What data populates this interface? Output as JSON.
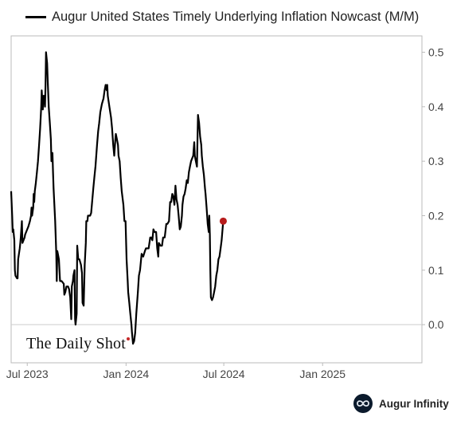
{
  "legend": {
    "label": "Augur United States Timely Underlying Inflation Nowcast (M/M)"
  },
  "watermark": {
    "text": "The Daily Shot"
  },
  "brand": {
    "text": "Augur Infinity",
    "icon": "infinity-icon"
  },
  "colors": {
    "line": "#000000",
    "endpoint": "#b71c1c",
    "frame": "#bbbbbb",
    "zero_line": "#cccccc"
  },
  "chart_data": {
    "type": "line",
    "title": "",
    "xlabel": "",
    "ylabel": "",
    "x_axis": "time (months)",
    "xlim": [
      "2023-06-01",
      "2025-07-05"
    ],
    "ylim": [
      -0.07,
      0.53
    ],
    "y_ticks": [
      0.0,
      0.1,
      0.2,
      0.3,
      0.4,
      0.5
    ],
    "y_tick_labels": [
      "0.0",
      "0.1",
      "0.2",
      "0.3",
      "0.4",
      "0.5"
    ],
    "y_axis_side": "right",
    "x_ticks": [
      "2023-07-01",
      "2024-01-01",
      "2024-07-01",
      "2025-01-01"
    ],
    "x_tick_labels": [
      "Jul 2023",
      "Jan 2024",
      "Jul 2024",
      "Jan 2025"
    ],
    "grid": false,
    "legend_position": "top-left",
    "series": [
      {
        "name": "Augur United States Timely Underlying Inflation Nowcast (M/M)",
        "points": [
          [
            "2023-06-01",
            0.245
          ],
          [
            "2023-06-03",
            0.2
          ],
          [
            "2023-06-04",
            0.17
          ],
          [
            "2023-06-05",
            0.175
          ],
          [
            "2023-06-07",
            0.155
          ],
          [
            "2023-06-08",
            0.1
          ],
          [
            "2023-06-09",
            0.09
          ],
          [
            "2023-06-12",
            0.085
          ],
          [
            "2023-06-13",
            0.085
          ],
          [
            "2023-06-14",
            0.12
          ],
          [
            "2023-06-17",
            0.14
          ],
          [
            "2023-06-18",
            0.15
          ],
          [
            "2023-06-19",
            0.16
          ],
          [
            "2023-06-21",
            0.19
          ],
          [
            "2023-06-22",
            0.15
          ],
          [
            "2023-06-24",
            0.155
          ],
          [
            "2023-06-26",
            0.16
          ],
          [
            "2023-06-27",
            0.165
          ],
          [
            "2023-07-01",
            0.175
          ],
          [
            "2023-07-03",
            0.18
          ],
          [
            "2023-07-06",
            0.19
          ],
          [
            "2023-07-08",
            0.2
          ],
          [
            "2023-07-09",
            0.215
          ],
          [
            "2023-07-10",
            0.2
          ],
          [
            "2023-07-12",
            0.215
          ],
          [
            "2023-07-13",
            0.24
          ],
          [
            "2023-07-14",
            0.225
          ],
          [
            "2023-07-15",
            0.245
          ],
          [
            "2023-07-17",
            0.26
          ],
          [
            "2023-07-19",
            0.28
          ],
          [
            "2023-07-21",
            0.3
          ],
          [
            "2023-07-23",
            0.33
          ],
          [
            "2023-07-25",
            0.36
          ],
          [
            "2023-07-27",
            0.4
          ],
          [
            "2023-07-28",
            0.43
          ],
          [
            "2023-07-30",
            0.395
          ],
          [
            "2023-07-31",
            0.42
          ],
          [
            "2023-08-02",
            0.42
          ],
          [
            "2023-08-03",
            0.4
          ],
          [
            "2023-08-04",
            0.44
          ],
          [
            "2023-08-05",
            0.5
          ],
          [
            "2023-08-07",
            0.48
          ],
          [
            "2023-08-08",
            0.45
          ],
          [
            "2023-08-10",
            0.4
          ],
          [
            "2023-08-12",
            0.37
          ],
          [
            "2023-08-14",
            0.34
          ],
          [
            "2023-08-15",
            0.3
          ],
          [
            "2023-08-17",
            0.315
          ],
          [
            "2023-08-18",
            0.28
          ],
          [
            "2023-08-19",
            0.25
          ],
          [
            "2023-08-22",
            0.19
          ],
          [
            "2023-08-24",
            0.13
          ],
          [
            "2023-08-25",
            0.08
          ],
          [
            "2023-08-26",
            0.135
          ],
          [
            "2023-08-27",
            0.13
          ],
          [
            "2023-08-29",
            0.12
          ],
          [
            "2023-08-31",
            0.08
          ],
          [
            "2023-09-03",
            0.08
          ],
          [
            "2023-09-07",
            0.075
          ],
          [
            "2023-09-08",
            0.055
          ],
          [
            "2023-09-10",
            0.06
          ],
          [
            "2023-09-12",
            0.07
          ],
          [
            "2023-09-15",
            0.07
          ],
          [
            "2023-09-17",
            0.065
          ],
          [
            "2023-09-19",
            0.05
          ],
          [
            "2023-09-21",
            0.01
          ],
          [
            "2023-09-22",
            0.07
          ],
          [
            "2023-09-24",
            0.08
          ],
          [
            "2023-09-25",
            0.09
          ],
          [
            "2023-09-27",
            0.1
          ],
          [
            "2023-09-28",
            0.01
          ],
          [
            "2023-09-29",
            0.0
          ],
          [
            "2023-10-01",
            0.02
          ],
          [
            "2023-10-02",
            0.145
          ],
          [
            "2023-10-04",
            0.12
          ],
          [
            "2023-10-06",
            0.12
          ],
          [
            "2023-10-09",
            0.11
          ],
          [
            "2023-10-11",
            0.095
          ],
          [
            "2023-10-12",
            0.04
          ],
          [
            "2023-10-14",
            0.035
          ],
          [
            "2023-10-16",
            0.11
          ],
          [
            "2023-10-18",
            0.15
          ],
          [
            "2023-10-19",
            0.19
          ],
          [
            "2023-10-21",
            0.19
          ],
          [
            "2023-10-22",
            0.2
          ],
          [
            "2023-10-26",
            0.2
          ],
          [
            "2023-10-28",
            0.205
          ],
          [
            "2023-11-01",
            0.25
          ],
          [
            "2023-11-03",
            0.27
          ],
          [
            "2023-11-05",
            0.29
          ],
          [
            "2023-11-08",
            0.33
          ],
          [
            "2023-11-10",
            0.355
          ],
          [
            "2023-11-12",
            0.37
          ],
          [
            "2023-11-14",
            0.39
          ],
          [
            "2023-11-17",
            0.405
          ],
          [
            "2023-11-20",
            0.415
          ],
          [
            "2023-11-22",
            0.43
          ],
          [
            "2023-11-24",
            0.44
          ],
          [
            "2023-11-26",
            0.43
          ],
          [
            "2023-11-27",
            0.44
          ],
          [
            "2023-11-28",
            0.42
          ],
          [
            "2023-12-01",
            0.4
          ],
          [
            "2023-12-04",
            0.38
          ],
          [
            "2023-12-06",
            0.36
          ],
          [
            "2023-12-08",
            0.33
          ],
          [
            "2023-12-10",
            0.31
          ],
          [
            "2023-12-12",
            0.34
          ],
          [
            "2023-12-13",
            0.35
          ],
          [
            "2023-12-15",
            0.34
          ],
          [
            "2023-12-17",
            0.33
          ],
          [
            "2023-12-18",
            0.31
          ],
          [
            "2023-12-20",
            0.3
          ],
          [
            "2023-12-22",
            0.27
          ],
          [
            "2023-12-24",
            0.245
          ],
          [
            "2023-12-27",
            0.22
          ],
          [
            "2023-12-29",
            0.19
          ],
          [
            "2023-12-31",
            0.19
          ],
          [
            "2024-01-02",
            0.12
          ],
          [
            "2024-01-04",
            0.08
          ],
          [
            "2024-01-05",
            0.06
          ],
          [
            "2024-01-07",
            0.04
          ],
          [
            "2024-01-09",
            0.02
          ],
          [
            "2024-01-11",
            0.0
          ],
          [
            "2024-01-12",
            -0.015
          ],
          [
            "2024-01-14",
            -0.035
          ],
          [
            "2024-01-16",
            -0.03
          ],
          [
            "2024-01-18",
            -0.015
          ],
          [
            "2024-01-20",
            0.02
          ],
          [
            "2024-01-23",
            0.06
          ],
          [
            "2024-01-25",
            0.09
          ],
          [
            "2024-01-27",
            0.1
          ],
          [
            "2024-01-30",
            0.13
          ],
          [
            "2024-02-02",
            0.125
          ],
          [
            "2024-02-05",
            0.135
          ],
          [
            "2024-02-07",
            0.14
          ],
          [
            "2024-02-09",
            0.14
          ],
          [
            "2024-02-12",
            0.14
          ],
          [
            "2024-02-15",
            0.16
          ],
          [
            "2024-02-17",
            0.16
          ],
          [
            "2024-02-19",
            0.155
          ],
          [
            "2024-02-21",
            0.175
          ],
          [
            "2024-02-23",
            0.17
          ],
          [
            "2024-02-26",
            0.17
          ],
          [
            "2024-02-28",
            0.14
          ],
          [
            "2024-03-01",
            0.125
          ],
          [
            "2024-03-02",
            0.15
          ],
          [
            "2024-03-05",
            0.145
          ],
          [
            "2024-03-08",
            0.145
          ],
          [
            "2024-03-10",
            0.16
          ],
          [
            "2024-03-13",
            0.16
          ],
          [
            "2024-03-16",
            0.185
          ],
          [
            "2024-03-18",
            0.185
          ],
          [
            "2024-03-21",
            0.19
          ],
          [
            "2024-03-23",
            0.225
          ],
          [
            "2024-03-25",
            0.225
          ],
          [
            "2024-03-27",
            0.24
          ],
          [
            "2024-03-29",
            0.235
          ],
          [
            "2024-03-31",
            0.22
          ],
          [
            "2024-04-02",
            0.255
          ],
          [
            "2024-04-04",
            0.23
          ],
          [
            "2024-04-06",
            0.22
          ],
          [
            "2024-04-08",
            0.2
          ],
          [
            "2024-04-10",
            0.175
          ],
          [
            "2024-04-12",
            0.18
          ],
          [
            "2024-04-14",
            0.2
          ],
          [
            "2024-04-15",
            0.22
          ],
          [
            "2024-04-17",
            0.235
          ],
          [
            "2024-04-19",
            0.24
          ],
          [
            "2024-04-21",
            0.25
          ],
          [
            "2024-04-23",
            0.265
          ],
          [
            "2024-04-25",
            0.26
          ],
          [
            "2024-04-27",
            0.28
          ],
          [
            "2024-04-29",
            0.29
          ],
          [
            "2024-05-01",
            0.3
          ],
          [
            "2024-05-03",
            0.305
          ],
          [
            "2024-05-05",
            0.31
          ],
          [
            "2024-05-07",
            0.335
          ],
          [
            "2024-05-08",
            0.31
          ],
          [
            "2024-05-10",
            0.3
          ],
          [
            "2024-05-12",
            0.29
          ],
          [
            "2024-05-14",
            0.385
          ],
          [
            "2024-05-16",
            0.37
          ],
          [
            "2024-05-18",
            0.345
          ],
          [
            "2024-05-20",
            0.33
          ],
          [
            "2024-05-21",
            0.31
          ],
          [
            "2024-05-23",
            0.29
          ],
          [
            "2024-05-25",
            0.275
          ],
          [
            "2024-05-27",
            0.25
          ],
          [
            "2024-05-28",
            0.24
          ],
          [
            "2024-05-30",
            0.215
          ],
          [
            "2024-06-01",
            0.185
          ],
          [
            "2024-06-03",
            0.17
          ],
          [
            "2024-06-04",
            0.2
          ],
          [
            "2024-06-05",
            0.165
          ],
          [
            "2024-06-06",
            0.1
          ],
          [
            "2024-06-07",
            0.05
          ],
          [
            "2024-06-09",
            0.045
          ],
          [
            "2024-06-11",
            0.05
          ],
          [
            "2024-06-13",
            0.06
          ],
          [
            "2024-06-15",
            0.07
          ],
          [
            "2024-06-17",
            0.09
          ],
          [
            "2024-06-19",
            0.1
          ],
          [
            "2024-06-21",
            0.12
          ],
          [
            "2024-06-23",
            0.125
          ],
          [
            "2024-06-25",
            0.14
          ],
          [
            "2024-06-27",
            0.155
          ],
          [
            "2024-06-30",
            0.19
          ]
        ]
      }
    ],
    "endpoint": {
      "date": "2024-06-30",
      "value": 0.19
    }
  }
}
